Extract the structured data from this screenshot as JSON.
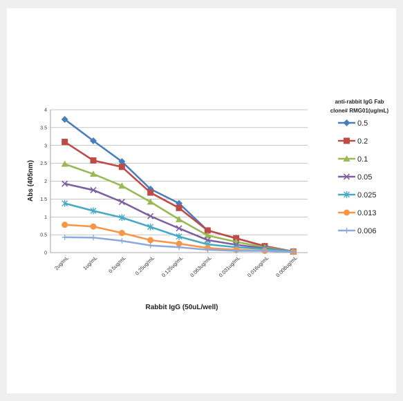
{
  "chart_data": {
    "type": "line",
    "title": "",
    "xlabel": "Rabbit IgG  (50uL/well)",
    "ylabel": "Abs (405nm)",
    "ylim": [
      0,
      4
    ],
    "yticks": [
      "0",
      "0.5",
      "1",
      "1.5",
      "2",
      "2.5",
      "3",
      "3.5",
      "4"
    ],
    "categories": [
      "2ug/mL",
      "1ug/mL",
      "0.5ug/mL",
      "0.25ug/mL",
      "0.125ug/mL",
      "0.063ug/mL",
      "0.031ug/mL",
      "0.016ug/mL",
      "0.008ug/mL"
    ],
    "grid": true,
    "legend_position": "right",
    "legend_title": [
      "anti-rabbit IgG Fab",
      "clone# RMG01(ug/mL)"
    ],
    "series": [
      {
        "name": "0.5",
        "color": "#4a7ebb",
        "marker": "diamond",
        "values": [
          3.73,
          3.13,
          2.55,
          1.78,
          1.38,
          0.62,
          0.4,
          0.18,
          0.03
        ]
      },
      {
        "name": "0.2",
        "color": "#be4b48",
        "marker": "square",
        "values": [
          3.1,
          2.58,
          2.4,
          1.68,
          1.25,
          0.62,
          0.4,
          0.18,
          0.03
        ]
      },
      {
        "name": "0.1",
        "color": "#98b954",
        "marker": "triangle",
        "values": [
          2.48,
          2.2,
          1.87,
          1.42,
          0.93,
          0.48,
          0.3,
          0.15,
          0.03
        ]
      },
      {
        "name": "0.05",
        "color": "#7d60a0",
        "marker": "x",
        "values": [
          1.93,
          1.75,
          1.42,
          1.02,
          0.68,
          0.35,
          0.22,
          0.12,
          0.03
        ]
      },
      {
        "name": "0.025",
        "color": "#46aac5",
        "marker": "star",
        "values": [
          1.38,
          1.17,
          0.98,
          0.72,
          0.45,
          0.23,
          0.15,
          0.1,
          0.03
        ]
      },
      {
        "name": "0.013",
        "color": "#f79646",
        "marker": "circle",
        "values": [
          0.78,
          0.73,
          0.55,
          0.35,
          0.25,
          0.13,
          0.08,
          0.05,
          0.02
        ]
      },
      {
        "name": "0.006",
        "color": "#8eaadb",
        "marker": "plus",
        "values": [
          0.43,
          0.42,
          0.33,
          0.2,
          0.15,
          0.08,
          0.05,
          0.05,
          0.02
        ]
      }
    ]
  }
}
